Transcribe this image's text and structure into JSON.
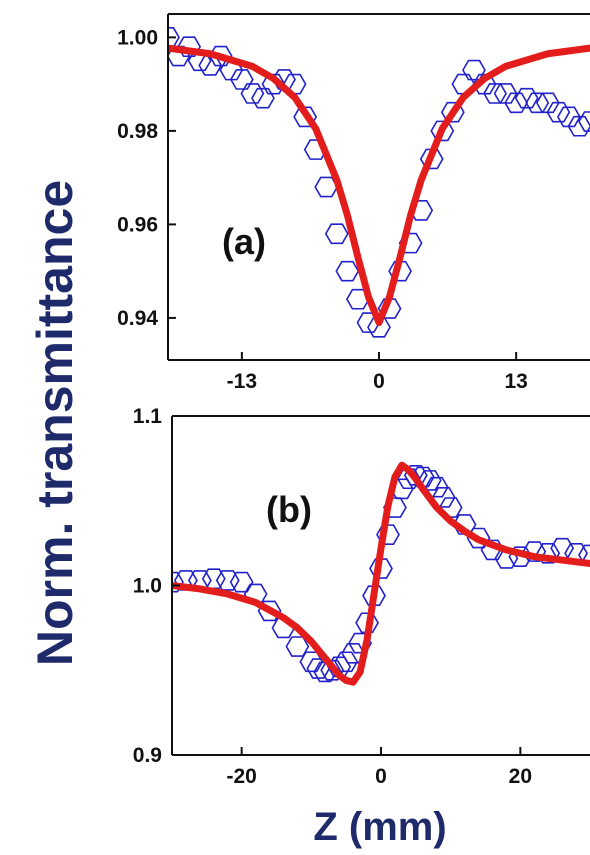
{
  "chart_data": [
    {
      "type": "scatter",
      "panel_label": "(a)",
      "xlim": [
        -20,
        20
      ],
      "ylim": [
        0.931,
        1.005
      ],
      "xticks": [
        -13,
        0,
        13
      ],
      "xtick_labels": [
        "-13",
        "0",
        "13"
      ],
      "yticks": [
        0.94,
        0.96,
        0.98,
        1.0
      ],
      "ytick_labels": [
        "0.94",
        "0.96",
        "0.98",
        "1.00"
      ],
      "series": [
        {
          "kind": "markers",
          "marker": "hexagon",
          "color": "#2222cc",
          "x": [
            -20,
            -19,
            -18,
            -17,
            -16,
            -15,
            -14,
            -13,
            -12,
            -11,
            -10,
            -9,
            -8,
            -7,
            -6,
            -5,
            -4,
            -3,
            -2,
            -1,
            0,
            1,
            2,
            3,
            4,
            5,
            6,
            7,
            8,
            9,
            10,
            11,
            12,
            13,
            14,
            15,
            16,
            17,
            18,
            19,
            20
          ],
          "y": [
            1.0,
            0.996,
            0.998,
            0.995,
            0.994,
            0.996,
            0.993,
            0.991,
            0.988,
            0.987,
            0.99,
            0.991,
            0.99,
            0.983,
            0.976,
            0.968,
            0.958,
            0.95,
            0.944,
            0.939,
            0.938,
            0.942,
            0.95,
            0.956,
            0.963,
            0.974,
            0.98,
            0.984,
            0.99,
            0.993,
            0.99,
            0.988,
            0.988,
            0.986,
            0.987,
            0.986,
            0.986,
            0.984,
            0.983,
            0.981,
            0.982
          ]
        },
        {
          "kind": "fit-line",
          "color": "#e31c1c",
          "x": [
            -20,
            -16,
            -12,
            -10,
            -8,
            -6,
            -4,
            -3,
            -2,
            -1,
            0,
            1,
            2,
            3,
            4,
            6,
            8,
            10,
            12,
            16,
            20
          ],
          "y": [
            0.9977,
            0.9965,
            0.9938,
            0.9912,
            0.9872,
            0.9805,
            0.9695,
            0.962,
            0.953,
            0.9445,
            0.939,
            0.9445,
            0.953,
            0.962,
            0.9695,
            0.9805,
            0.9872,
            0.9912,
            0.9938,
            0.9965,
            0.9977
          ]
        }
      ]
    },
    {
      "type": "scatter",
      "panel_label": "(b)",
      "xlim": [
        -30,
        30
      ],
      "ylim": [
        0.9,
        1.1
      ],
      "xticks": [
        -20,
        0,
        20
      ],
      "xtick_labels": [
        "-20",
        "0",
        "20"
      ],
      "yticks": [
        0.9,
        1.0,
        1.1
      ],
      "ytick_labels": [
        "0.9",
        "1.0",
        "1.1"
      ],
      "series": [
        {
          "kind": "markers",
          "marker": "hexagon",
          "color": "#2222cc",
          "x": [
            -30,
            -28,
            -26,
            -24,
            -22,
            -20,
            -18,
            -16,
            -14,
            -12,
            -10,
            -9,
            -8,
            -7,
            -6,
            -5,
            -4,
            -3,
            -2,
            -1,
            0,
            1,
            2,
            3,
            4,
            5,
            6,
            7,
            8,
            9,
            10,
            12,
            14,
            16,
            18,
            20,
            22,
            24,
            26,
            28,
            30
          ],
          "y": [
            1.002,
            1.003,
            1.003,
            1.004,
            1.003,
            1.002,
            0.995,
            0.985,
            0.975,
            0.964,
            0.955,
            0.951,
            0.949,
            0.95,
            0.952,
            0.955,
            0.96,
            0.966,
            0.978,
            0.994,
            1.01,
            1.03,
            1.046,
            1.057,
            1.063,
            1.065,
            1.064,
            1.062,
            1.058,
            1.052,
            1.046,
            1.036,
            1.028,
            1.021,
            1.016,
            1.017,
            1.02,
            1.019,
            1.022,
            1.019,
            1.018
          ]
        },
        {
          "kind": "fit-line",
          "color": "#e31c1c",
          "x": [
            -30,
            -26,
            -22,
            -18,
            -14,
            -12,
            -10,
            -8,
            -6,
            -5,
            -4,
            -3,
            -2,
            -1,
            0,
            1,
            2,
            3,
            4,
            5,
            6,
            8,
            10,
            12,
            14,
            18,
            22,
            26,
            30
          ],
          "y": [
            1.0,
            0.998,
            0.995,
            0.99,
            0.981,
            0.975,
            0.967,
            0.957,
            0.947,
            0.944,
            0.943,
            0.949,
            0.968,
            0.995,
            1.022,
            1.047,
            1.064,
            1.071,
            1.068,
            1.063,
            1.057,
            1.046,
            1.038,
            1.032,
            1.027,
            1.021,
            1.017,
            1.015,
            1.013
          ]
        }
      ]
    }
  ],
  "axes": {
    "ylabel": "Norm. transmittance",
    "xlabel": "Z (mm)"
  },
  "colors": {
    "marker": "#2222cc",
    "fit": "#e31c1c",
    "axis_title": "#1f2a6b"
  }
}
